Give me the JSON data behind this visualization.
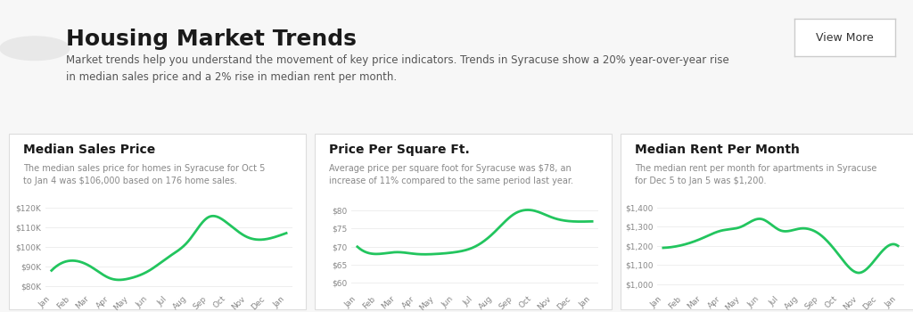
{
  "title": "Housing Market Trends",
  "subtitle": "Market trends help you understand the movement of key price indicators. Trends in Syracuse show a 20% year-over-year rise\nin median sales price and a 2% rise in median rent per month.",
  "button_text": "View More",
  "background_color": "#f7f7f7",
  "card_color": "#ffffff",
  "line_color": "#22c55e",
  "months": [
    "Jan",
    "Feb",
    "Mar",
    "Apr",
    "May",
    "Jun",
    "Jul",
    "Aug",
    "Sep",
    "Oct",
    "Nov",
    "Dec",
    "Jan"
  ],
  "chart1_title": "Median Sales Price",
  "chart1_desc": "The median sales price for homes in Syracuse for Oct 5\nto Jan 4 was $106,000 based on 176 home sales.",
  "chart1_values": [
    88000,
    93000,
    90000,
    84000,
    84000,
    88000,
    95000,
    103000,
    115000,
    112000,
    105000,
    104000,
    107000
  ],
  "chart1_yticks": [
    80000,
    90000,
    100000,
    110000,
    120000
  ],
  "chart1_ylabels": [
    "$80K",
    "$90K",
    "$100K",
    "$110K",
    "$120K"
  ],
  "chart1_ylim": [
    78000,
    124000
  ],
  "chart2_title": "Price Per Square Ft.",
  "chart2_desc": "Average price per square foot for Syracuse was $78, an\nincrease of 11% compared to the same period last year.",
  "chart2_values": [
    70,
    68,
    68.5,
    68,
    68,
    68.5,
    70,
    74,
    79,
    80,
    78,
    77,
    77
  ],
  "chart2_yticks": [
    60,
    65,
    70,
    75,
    80
  ],
  "chart2_ylabels": [
    "$60",
    "$65",
    "$70",
    "$75",
    "$80"
  ],
  "chart2_ylim": [
    58,
    83
  ],
  "chart3_title": "Median Rent Per Month",
  "chart3_desc": "The median rent per month for apartments in Syracuse\nfor Dec 5 to Jan 5 was $1,200.",
  "chart3_values": [
    1190,
    1205,
    1240,
    1280,
    1300,
    1340,
    1280,
    1290,
    1260,
    1150,
    1060,
    1150,
    1200
  ],
  "chart3_yticks": [
    1000,
    1100,
    1200,
    1300,
    1400
  ],
  "chart3_ylabels": [
    "$1,000",
    "$1,100",
    "$1,200",
    "$1,300",
    "$1,400"
  ],
  "chart3_ylim": [
    970,
    1440
  ]
}
